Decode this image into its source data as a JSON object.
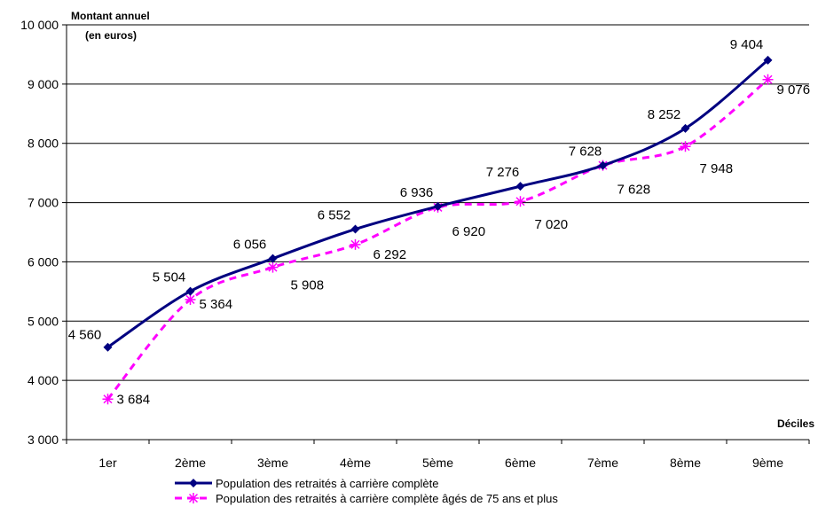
{
  "chart_data": {
    "type": "line",
    "ylabel_line1": "Montant annuel",
    "ylabel_line2": "(en euros)",
    "xlabel": "Déciles",
    "categories": [
      "1er",
      "2ème",
      "3ème",
      "4ème",
      "5ème",
      "6ème",
      "7ème",
      "8ème",
      "9ème"
    ],
    "ylim": [
      3000,
      10000
    ],
    "y_ticks": [
      3000,
      4000,
      5000,
      6000,
      7000,
      8000,
      9000,
      10000
    ],
    "y_tick_labels": [
      "3 000",
      "4 000",
      "5 000",
      "6 000",
      "7 000",
      "8 000",
      "9 000",
      "10 000"
    ],
    "grid": true,
    "legend_position": "bottom",
    "series": [
      {
        "name": "Population des retraités à carrière complète",
        "values": [
          4560,
          5504,
          6056,
          6552,
          6936,
          7276,
          7628,
          8252,
          9404
        ],
        "labels": [
          "4 560",
          "5 504",
          "6 056",
          "6 552",
          "6 936",
          "7 276",
          "7 628",
          "8 252",
          "9 404"
        ],
        "color": "#000080",
        "marker": "diamond",
        "line_style": "solid"
      },
      {
        "name": "Population des retraités à carrière complète âgés de 75 ans et plus",
        "values": [
          3684,
          5364,
          5908,
          6292,
          6920,
          7020,
          7628,
          7948,
          9076
        ],
        "labels": [
          "3 684",
          "5 364",
          "5 908",
          "6 292",
          "6 920",
          "7 020",
          "7 628",
          "7 948",
          "9 076"
        ],
        "color": "#FF00FF",
        "marker": "asterisk",
        "line_style": "dashed"
      }
    ]
  }
}
